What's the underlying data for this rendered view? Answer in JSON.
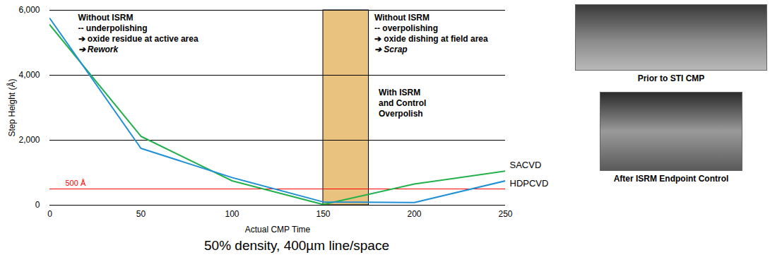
{
  "chart_data": {
    "type": "line",
    "x_label": "Actual CMP Time",
    "y_label": "Step Height (Å)",
    "caption": "50% density, 400µm line/space",
    "x": [
      0,
      50,
      100,
      150,
      200,
      250
    ],
    "series": [
      {
        "name": "SACVD",
        "color": "#22b04b",
        "values": [
          5550,
          2120,
          750,
          20,
          650,
          1050
        ]
      },
      {
        "name": "HDPCVD",
        "color": "#1f8fd6",
        "values": [
          5750,
          1750,
          850,
          100,
          80,
          750
        ]
      }
    ],
    "xlim": [
      0,
      250
    ],
    "xticks": [
      0,
      50,
      100,
      150,
      200,
      250
    ],
    "ylim": [
      0,
      6000
    ],
    "yticks": [
      0,
      2000,
      4000,
      6000
    ],
    "grid": true,
    "reference_line": {
      "y": 500,
      "label": "500 Å",
      "color": "#ff0000"
    },
    "shaded_region": {
      "x": [
        150,
        175
      ],
      "color": "#e8c27e",
      "label": [
        "With ISRM",
        "and Control",
        "Overpolish"
      ]
    },
    "annotations": [
      {
        "anchor": "left",
        "text": [
          "Without ISRM",
          "-- underpolishing",
          "➔ oxide residue at active area",
          "➔ Rework"
        ]
      },
      {
        "anchor": "shaded_region",
        "text": [
          "Without ISRM",
          "-- overpolishing",
          "➔ oxide dishing at field area",
          "➔ Scrap"
        ]
      }
    ]
  },
  "panels": [
    {
      "caption": "Prior to STI CMP"
    },
    {
      "caption": "After ISRM Endpoint Control"
    }
  ]
}
